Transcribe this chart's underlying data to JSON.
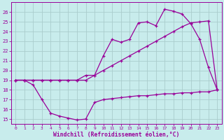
{
  "xlabel": "Windchill (Refroidissement éolien,°C)",
  "ylim": [
    14.5,
    27.0
  ],
  "xlim": [
    -0.5,
    23.5
  ],
  "bg_color": "#c8ecec",
  "line_color": "#990099",
  "grid_color": "#aacccc",
  "xticks": [
    0,
    1,
    2,
    3,
    4,
    5,
    6,
    7,
    8,
    9,
    10,
    11,
    12,
    13,
    14,
    15,
    16,
    17,
    18,
    19,
    20,
    21,
    22,
    23
  ],
  "yticks": [
    15,
    16,
    17,
    18,
    19,
    20,
    21,
    22,
    23,
    24,
    25,
    26
  ],
  "line1_x": [
    0,
    1,
    2,
    3,
    4,
    5,
    6,
    7,
    8,
    9,
    10,
    11,
    12,
    13,
    14,
    15,
    16,
    17,
    18,
    19,
    20,
    21,
    22,
    23
  ],
  "line1_y": [
    19.0,
    19.0,
    18.5,
    17.0,
    15.6,
    15.3,
    15.1,
    14.9,
    15.0,
    16.7,
    17.0,
    17.1,
    17.2,
    17.3,
    17.4,
    17.4,
    17.5,
    17.6,
    17.6,
    17.7,
    17.7,
    17.8,
    17.8,
    18.0
  ],
  "line2_x": [
    0,
    1,
    2,
    3,
    4,
    5,
    6,
    7,
    8,
    9,
    10,
    11,
    12,
    13,
    14,
    15,
    16,
    17,
    18,
    19,
    20,
    21,
    22,
    23
  ],
  "line2_y": [
    19.0,
    19.0,
    19.0,
    19.0,
    19.0,
    19.0,
    19.0,
    19.0,
    19.0,
    19.5,
    21.5,
    23.2,
    22.9,
    23.2,
    24.9,
    25.0,
    24.6,
    26.3,
    26.1,
    25.8,
    24.8,
    23.2,
    20.3,
    18.0
  ],
  "line3_x": [
    0,
    1,
    2,
    3,
    4,
    5,
    6,
    7,
    8,
    9,
    10,
    11,
    12,
    13,
    14,
    15,
    16,
    17,
    18,
    19,
    20,
    21,
    22,
    23
  ],
  "line3_y": [
    19.0,
    19.0,
    19.0,
    19.0,
    19.0,
    19.0,
    19.0,
    19.0,
    19.5,
    19.5,
    20.0,
    20.5,
    21.0,
    21.5,
    22.0,
    22.5,
    23.0,
    23.5,
    24.0,
    24.5,
    24.9,
    25.0,
    25.1,
    18.0
  ]
}
